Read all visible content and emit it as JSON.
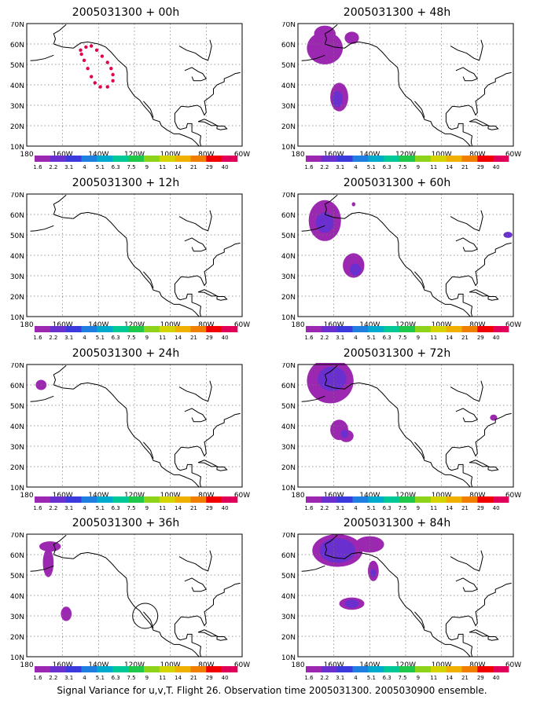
{
  "colorbar": {
    "labels": [
      "1.6",
      "2.2",
      "3.1",
      "4",
      "5.1",
      "6.3",
      "7.5",
      "9",
      "11",
      "14",
      "21",
      "29",
      "40"
    ],
    "colors": [
      "#9c27b0",
      "#6a2fcf",
      "#3b3bdd",
      "#1f7fe0",
      "#00aacc",
      "#00c896",
      "#1fc84a",
      "#8cd31a",
      "#d4d400",
      "#f0b000",
      "#f07f00",
      "#f00000",
      "#e0005a"
    ]
  },
  "axes": {
    "lon_labels": [
      "180",
      "160W",
      "140W",
      "120W",
      "100W",
      "80W",
      "60W"
    ],
    "lat_labels": [
      "70N",
      "60N",
      "50N",
      "40N",
      "30N",
      "20N",
      "10N"
    ]
  },
  "panels": [
    {
      "title": "2005031300 + 00h"
    },
    {
      "title": "2005031300 + 48h"
    },
    {
      "title": "2005031300 + 12h"
    },
    {
      "title": "2005031300 + 60h"
    },
    {
      "title": "2005031300 + 24h"
    },
    {
      "title": "2005031300 + 72h"
    },
    {
      "title": "2005031300 + 36h"
    },
    {
      "title": "2005031300 + 84h"
    }
  ],
  "caption": "Signal Variance for u,v,T. Flight 26. Observation time 2005031300. 2005030900 ensemble."
}
